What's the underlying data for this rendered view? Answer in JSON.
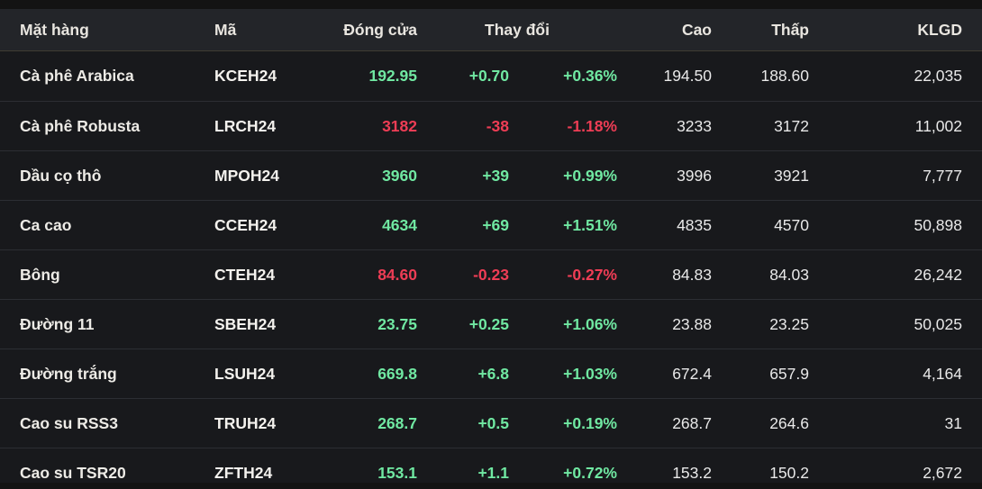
{
  "colors": {
    "up": "#70e8a2",
    "down": "#ee3d55",
    "header_bg": "#232529",
    "row_bg": "#18191c",
    "page_bg": "#131313"
  },
  "table": {
    "headers": {
      "name": "Mặt hàng",
      "code": "Mã",
      "close": "Đóng cửa",
      "change": "Thay đổi",
      "high": "Cao",
      "low": "Thấp",
      "volume": "KLGD"
    },
    "rows": [
      {
        "name": "Cà phê Arabica",
        "code": "KCEH24",
        "close": "192.95",
        "change": "+0.70",
        "change_pct": "+0.36%",
        "high": "194.50",
        "low": "188.60",
        "volume": "22,035",
        "direction": "up"
      },
      {
        "name": "Cà phê Robusta",
        "code": "LRCH24",
        "close": "3182",
        "change": "-38",
        "change_pct": "-1.18%",
        "high": "3233",
        "low": "3172",
        "volume": "11,002",
        "direction": "down"
      },
      {
        "name": "Dầu cọ thô",
        "code": "MPOH24",
        "close": "3960",
        "change": "+39",
        "change_pct": "+0.99%",
        "high": "3996",
        "low": "3921",
        "volume": "7,777",
        "direction": "up"
      },
      {
        "name": "Ca cao",
        "code": "CCEH24",
        "close": "4634",
        "change": "+69",
        "change_pct": "+1.51%",
        "high": "4835",
        "low": "4570",
        "volume": "50,898",
        "direction": "up"
      },
      {
        "name": "Bông",
        "code": "CTEH24",
        "close": "84.60",
        "change": "-0.23",
        "change_pct": "-0.27%",
        "high": "84.83",
        "low": "84.03",
        "volume": "26,242",
        "direction": "down"
      },
      {
        "name": "Đường 11",
        "code": "SBEH24",
        "close": "23.75",
        "change": "+0.25",
        "change_pct": "+1.06%",
        "high": "23.88",
        "low": "23.25",
        "volume": "50,025",
        "direction": "up"
      },
      {
        "name": "Đường trắng",
        "code": "LSUH24",
        "close": "669.8",
        "change": "+6.8",
        "change_pct": "+1.03%",
        "high": "672.4",
        "low": "657.9",
        "volume": "4,164",
        "direction": "up"
      },
      {
        "name": "Cao su RSS3",
        "code": "TRUH24",
        "close": "268.7",
        "change": "+0.5",
        "change_pct": "+0.19%",
        "high": "268.7",
        "low": "264.6",
        "volume": "31",
        "direction": "up"
      },
      {
        "name": "Cao su TSR20",
        "code": "ZFTH24",
        "close": "153.1",
        "change": "+1.1",
        "change_pct": "+0.72%",
        "high": "153.2",
        "low": "150.2",
        "volume": "2,672",
        "direction": "up"
      }
    ]
  }
}
